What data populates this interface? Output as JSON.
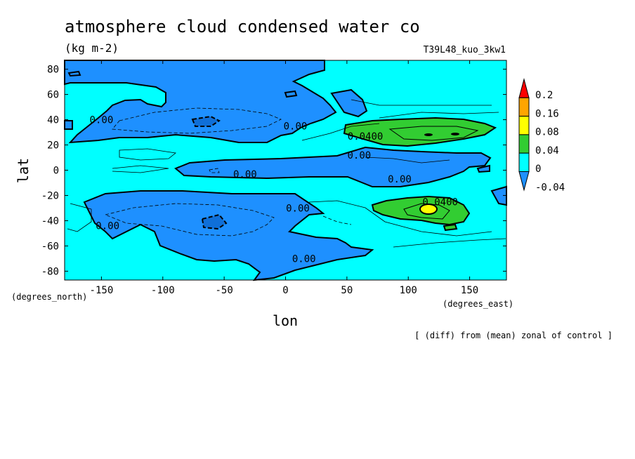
{
  "chart_data": {
    "type": "heatmap",
    "title": "atmosphere cloud condensed water co",
    "units": "(kg m-2)",
    "run_label": "T39L48_kuo_3kw1",
    "xlabel": "lon",
    "ylabel": "lat",
    "x_units": "(degrees_east)",
    "y_units": "(degrees_north)",
    "footnote": "[ (diff) from (mean) zonal of control ]",
    "xlim": [
      -180,
      180
    ],
    "ylim": [
      -87,
      87
    ],
    "x_ticks": [
      -150,
      -100,
      -50,
      0,
      50,
      100,
      150
    ],
    "x_tick_labels": [
      "-150",
      "-100",
      "-50",
      "0",
      "50",
      "100",
      "150"
    ],
    "y_ticks": [
      -80,
      -60,
      -40,
      -20,
      0,
      20,
      40,
      60,
      80
    ],
    "y_tick_labels": [
      "-80",
      "-60",
      "-40",
      "-20",
      "0",
      "20",
      "40",
      "60",
      "80"
    ],
    "colorbar": {
      "levels": [
        -0.04,
        0,
        0.04,
        0.08,
        0.16,
        0.2
      ],
      "labels": [
        "-0.04",
        "0",
        "0.04",
        "0.08",
        "0.16",
        "0.2"
      ],
      "colors": [
        "#1e90ff",
        "#00ffff",
        "#32cd32",
        "#ffff00",
        "#ffa500",
        "#ff0000"
      ],
      "negative_fill": "#1e90ff",
      "positive_fill": "#00ffff"
    },
    "contour_labels": [
      {
        "text": "0.00",
        "lon": -150,
        "lat": 40
      },
      {
        "text": "0.00",
        "lon": 8,
        "lat": 35
      },
      {
        "text": "0.0400",
        "lon": 65,
        "lat": 27
      },
      {
        "text": "0.00",
        "lon": 60,
        "lat": 12
      },
      {
        "text": "0.00",
        "lon": -33,
        "lat": -3
      },
      {
        "text": "0.00",
        "lon": 93,
        "lat": -7
      },
      {
        "text": "0.00",
        "lon": 10,
        "lat": -30
      },
      {
        "text": "0.0400",
        "lon": 126,
        "lat": -25
      },
      {
        "text": "0.00",
        "lon": -145,
        "lat": -44
      },
      {
        "text": "0.00",
        "lon": 15,
        "lat": -70
      }
    ],
    "regions": [
      {
        "name": "north negative band",
        "value_class": "negative",
        "lon_range": [
          -180,
          30
        ],
        "lat_range": [
          22,
          87
        ]
      },
      {
        "name": "equatorial negative band",
        "value_class": "negative",
        "lon_range": [
          -90,
          160
        ],
        "lat_range": [
          -12,
          8
        ]
      },
      {
        "name": "south negative band",
        "value_class": "negative",
        "lon_range": [
          -160,
          40
        ],
        "lat_range": [
          -75,
          -15
        ]
      },
      {
        "name": "north positive maximum",
        "value_class": "0.04-0.08",
        "lon_range": [
          45,
          165
        ],
        "lat_range": [
          20,
          40
        ]
      },
      {
        "name": "south positive maximum",
        "value_class": "0.04-0.16",
        "lon_range": [
          68,
          145
        ],
        "lat_range": [
          -45,
          -20
        ]
      }
    ]
  }
}
